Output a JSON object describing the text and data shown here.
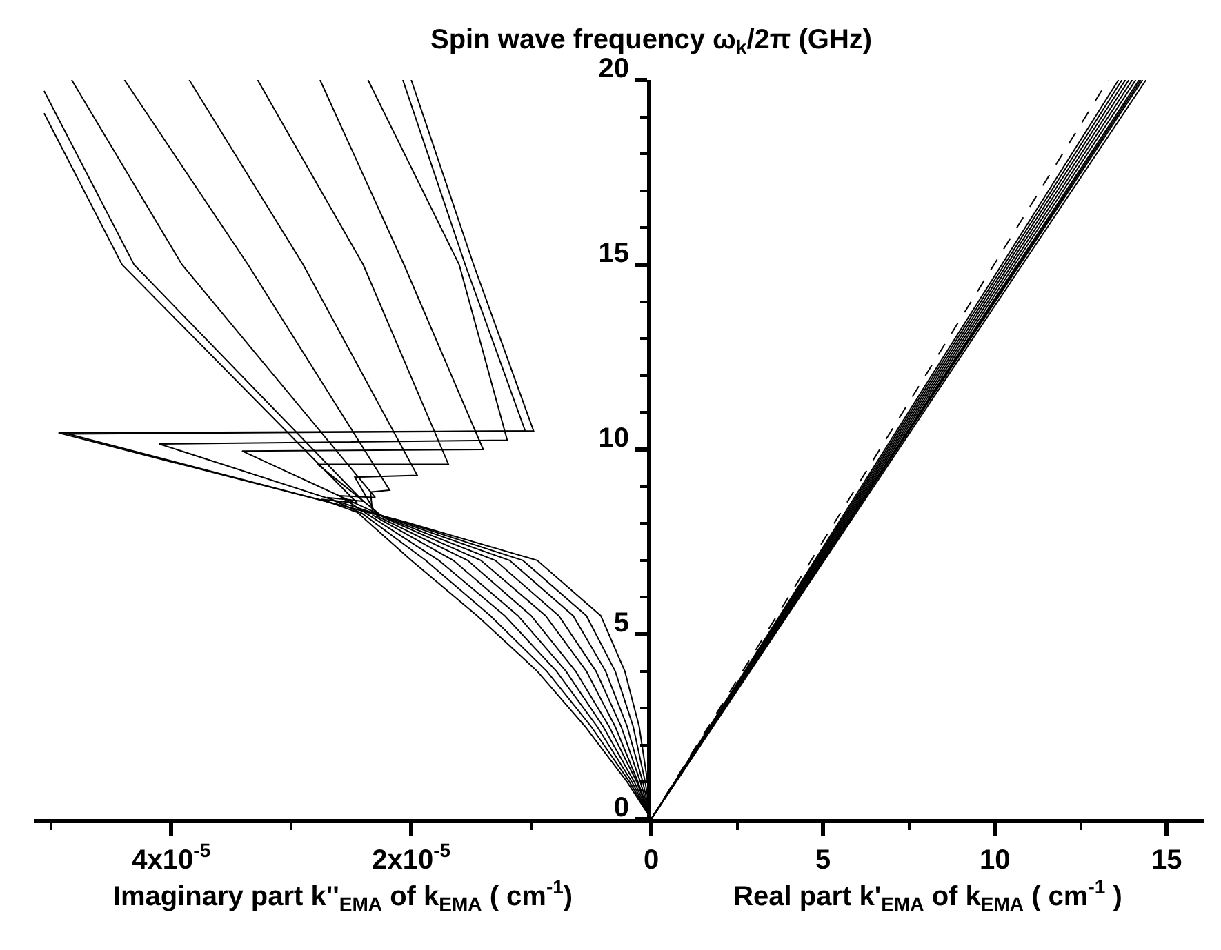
{
  "chart_data": [
    {
      "type": "line",
      "xlabel": "Imaginary part k''$_{EMA}$ of k$_{EMA}$ ( cm$^{-1}$)",
      "xlim": [
        5.14e-05,
        0
      ],
      "ylim": [
        0,
        20
      ],
      "xticks": [
        {
          "value": 5e-05,
          "label": null
        },
        {
          "value": 4e-05,
          "label": "4x10$^{-5}$"
        },
        {
          "value": 3e-05,
          "label": null
        },
        {
          "value": 2e-05,
          "label": "2x10$^{-5}$"
        },
        {
          "value": 1e-05,
          "label": null
        },
        {
          "value": 0,
          "label": null
        }
      ],
      "tick_labels": "x",
      "grid": false,
      "marker": "none",
      "line_style": "solid",
      "series": [
        {
          "color": "#000000",
          "x": [
            0,
            2e-06,
            5.5e-06,
            9.5e-06,
            1.45e-05,
            2e-05,
            2.45e-05,
            2.75e-05,
            2.45e-05,
            4.41e-05,
            5.06e-05
          ],
          "values": [
            0,
            1,
            2.5,
            4,
            5.5,
            7,
            8.3,
            8.65,
            8.55,
            15,
            19.1
          ]
        },
        {
          "color": "#000000",
          "x": [
            0,
            1.8e-06,
            5e-06,
            8.7e-06,
            1.34e-05,
            1.88e-05,
            2.41e-05,
            2.7e-05,
            2.4e-05,
            4.31e-05,
            5.06e-05
          ],
          "values": [
            0,
            1,
            2.5,
            4,
            5.5,
            7,
            8.27,
            8.7,
            8.6,
            15,
            19.7
          ]
        },
        {
          "color": "#000000",
          "x": [
            0,
            1.6e-06,
            4.5e-06,
            7.9e-06,
            1.22e-05,
            1.77e-05,
            2.36e-05,
            2.6e-05,
            2.3e-05,
            3.91e-05,
            4.83e-05
          ],
          "values": [
            0,
            1,
            2.5,
            4,
            5.5,
            7,
            8.24,
            8.75,
            8.7,
            15,
            20
          ]
        },
        {
          "color": "#000000",
          "x": [
            0,
            1.4e-06,
            4e-06,
            7.1e-06,
            1.11e-05,
            1.65e-05,
            2.32e-05,
            2.34e-05,
            2.18e-05,
            3.36e-05,
            4.39e-05
          ],
          "values": [
            0,
            1,
            2.5,
            4,
            5.5,
            7,
            8.22,
            8.85,
            8.9,
            15,
            20
          ]
        },
        {
          "color": "#000000",
          "x": [
            0,
            1.2e-06,
            3.5e-06,
            6.3e-06,
            1e-05,
            1.53e-05,
            2.28e-05,
            2.47e-05,
            1.95e-05,
            2.9e-05,
            3.85e-05
          ],
          "values": [
            0,
            1,
            2.5,
            4,
            5.5,
            7,
            8.19,
            9.25,
            9.3,
            15,
            20
          ]
        },
        {
          "color": "#000000",
          "x": [
            0,
            1.1e-06,
            3e-06,
            5.4e-06,
            8.8e-06,
            1.42e-05,
            2.23e-05,
            2.78e-05,
            1.69e-05,
            2.4e-05,
            3.28e-05
          ],
          "values": [
            0,
            1,
            2.5,
            4,
            5.5,
            7,
            8.16,
            9.6,
            9.6,
            15,
            20
          ]
        },
        {
          "color": "#000000",
          "x": [
            0,
            9e-07,
            2.5e-06,
            4.6e-06,
            7.7e-06,
            1.3e-05,
            2.19e-05,
            3.41e-05,
            1.4e-05,
            2.06e-05,
            2.76e-05
          ],
          "values": [
            0,
            1,
            2.5,
            4,
            5.5,
            7,
            8.13,
            9.96,
            10,
            15,
            20
          ]
        },
        {
          "color": "#000000",
          "x": [
            0,
            7e-07,
            2e-06,
            3.8e-06,
            6.5e-06,
            1.18e-05,
            2.15e-05,
            4.1e-05,
            1.2e-05,
            1.6e-05,
            2.36e-05
          ],
          "values": [
            0,
            1,
            2.5,
            4,
            5.5,
            7,
            8.11,
            10.15,
            10.25,
            15,
            20
          ]
        },
        {
          "color": "#000000",
          "x": [
            0,
            5e-07,
            1.5e-06,
            3e-06,
            5.4e-06,
            1.07e-05,
            2.1e-05,
            4.86e-05,
            1.05e-05,
            1.55e-05,
            2.07e-05
          ],
          "values": [
            0,
            1,
            2.5,
            4,
            5.5,
            7,
            8.08,
            10.42,
            10.5,
            15,
            20
          ]
        },
        {
          "color": "#000000",
          "x": [
            0,
            3e-07,
            1e-06,
            2.2e-06,
            4.2e-06,
            9.5e-06,
            2.06e-05,
            4.94e-05,
            9.8e-06,
            1.48e-05,
            2e-05
          ],
          "values": [
            0,
            1,
            2.5,
            4,
            5.5,
            7,
            8.05,
            10.45,
            10.5,
            15,
            20
          ]
        }
      ]
    },
    {
      "type": "line",
      "xlabel": "Real part k'$_{EMA}$ of k$_{EMA}$ ( cm$^{-1}$ )",
      "ylabel": "Spin wave frequency ω$_{k}$/2π (GHz)",
      "xlim": [
        0,
        16.1
      ],
      "ylim": [
        0,
        20
      ],
      "xticks": [
        0,
        {
          "value": 2.5,
          "label": null
        },
        5,
        {
          "value": 7.5,
          "label": null
        },
        10,
        {
          "value": 12.5,
          "label": null
        },
        15
      ],
      "yticks": [
        0,
        {
          "value": 1,
          "label": null
        },
        {
          "value": 2,
          "label": null
        },
        {
          "value": 3,
          "label": null
        },
        {
          "value": 4,
          "label": null
        },
        5,
        {
          "value": 6,
          "label": null
        },
        {
          "value": 7,
          "label": null
        },
        {
          "value": 8,
          "label": null
        },
        {
          "value": 9,
          "label": null
        },
        10,
        {
          "value": 11,
          "label": null
        },
        {
          "value": 12,
          "label": null
        },
        {
          "value": 13,
          "label": null
        },
        {
          "value": 14,
          "label": null
        },
        15,
        {
          "value": 16,
          "label": null
        },
        {
          "value": 17,
          "label": null
        },
        {
          "value": 18,
          "label": null
        },
        {
          "value": 19,
          "label": null
        },
        20
      ],
      "grid": false,
      "marker": "none",
      "line_style": "solid",
      "series": [
        {
          "color": "#000000",
          "x": [
            0,
            13.6
          ],
          "values": [
            0,
            20
          ]
        },
        {
          "color": "#000000",
          "x": [
            0,
            13.7
          ],
          "values": [
            0,
            20
          ]
        },
        {
          "color": "#000000",
          "x": [
            0,
            13.8
          ],
          "values": [
            0,
            20
          ]
        },
        {
          "color": "#000000",
          "x": [
            0,
            13.9
          ],
          "values": [
            0,
            20
          ]
        },
        {
          "color": "#000000",
          "x": [
            0,
            14.0
          ],
          "values": [
            0,
            20
          ]
        },
        {
          "color": "#000000",
          "x": [
            0,
            14.1
          ],
          "values": [
            0,
            20
          ]
        },
        {
          "color": "#000000",
          "x": [
            0,
            14.2
          ],
          "values": [
            0,
            20
          ]
        },
        {
          "color": "#000000",
          "x": [
            0,
            14.25
          ],
          "values": [
            0,
            20
          ]
        },
        {
          "color": "#000000",
          "x": [
            0,
            14.3
          ],
          "values": [
            0,
            20
          ]
        },
        {
          "color": "#000000",
          "x": [
            0,
            14.4
          ],
          "values": [
            0,
            20
          ]
        },
        {
          "color": "#000000",
          "x": [
            0,
            13.3
          ],
          "values": [
            0,
            20
          ],
          "line_style": "dashed"
        }
      ]
    }
  ]
}
